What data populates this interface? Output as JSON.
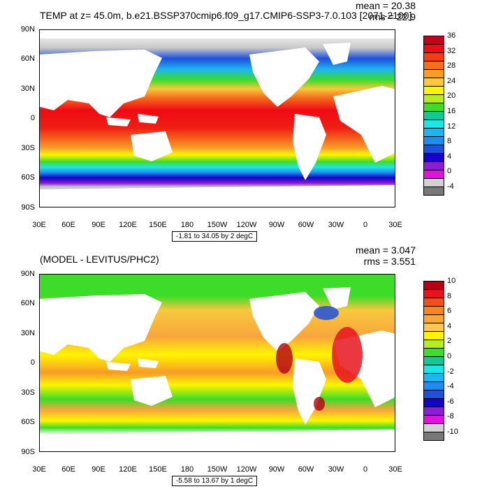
{
  "top": {
    "title": "TEMP at z=  45.0m, b.e21.BSSP370cmip6.f09_g17.CMIP6-SSP3-7.0.103 [2071-2100]",
    "mean": "mean = 20.38",
    "rms": "rms = 22.9",
    "range": "-1.81 to 34.05 by 2 degC",
    "colorbar_labels": [
      "36",
      "32",
      "28",
      "24",
      "20",
      "16",
      "12",
      "8",
      "4",
      "0",
      "-4"
    ],
    "colorbar_colors": [
      "#c8001e",
      "#f00a14",
      "#f63c14",
      "#f56e1e",
      "#f89b28",
      "#f9c83c",
      "#fff500",
      "#b4ee1e",
      "#3cdc28",
      "#14c896",
      "#1ee6e6",
      "#1eb4f0",
      "#1e8cf0",
      "#1e50dc",
      "#1400c8",
      "#8c1ed2",
      "#dc14dc",
      "#d2d2d2",
      "#787878"
    ]
  },
  "bottom": {
    "title": "(MODEL - LEVITUS/PHC2)",
    "mean": "mean = 3.047",
    "rms": "rms = 3.551",
    "range": "-5.58 to 13.67 by 1 degC",
    "colorbar_labels": [
      "10",
      "8",
      "6",
      "4",
      "2",
      "0",
      "-2",
      "-4",
      "-6",
      "-8",
      "-10"
    ],
    "colorbar_colors": [
      "#b40014",
      "#e6141e",
      "#f0501e",
      "#f5871e",
      "#f8a53c",
      "#f9c850",
      "#fff500",
      "#b4ee1e",
      "#3cdc28",
      "#14c896",
      "#1ee6e6",
      "#1eb4f0",
      "#1e8cf0",
      "#1e50dc",
      "#1400c8",
      "#8c1ed2",
      "#dc14dc",
      "#d2d2d2",
      "#787878"
    ]
  },
  "axes": {
    "lat_labels": [
      "90N",
      "60N",
      "30N",
      "0",
      "30S",
      "60S",
      "90S"
    ],
    "lon_labels": [
      "30E",
      "60E",
      "90E",
      "120E",
      "150E",
      "180",
      "150W",
      "120W",
      "90W",
      "60W",
      "30W",
      "0",
      "30E"
    ]
  }
}
